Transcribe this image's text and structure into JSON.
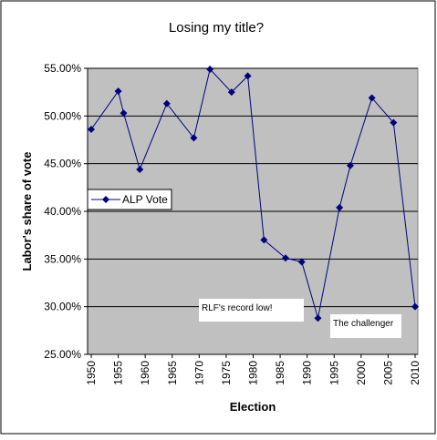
{
  "chart_data": {
    "type": "line",
    "title": "Losing my title?",
    "x_label": "Election",
    "y_label": "Labor's share of vote",
    "x": [
      1950,
      1955,
      1956,
      1959,
      1964,
      1969,
      1972,
      1976,
      1979,
      1982,
      1986,
      1989,
      1992,
      1996,
      1998,
      2002,
      2006,
      2010
    ],
    "series": [
      {
        "name": "ALP Vote",
        "color": "#000080",
        "values": [
          48.6,
          52.6,
          50.3,
          44.4,
          51.3,
          47.7,
          54.9,
          52.5,
          54.2,
          37.0,
          35.1,
          34.7,
          28.8,
          40.4,
          44.8,
          51.9,
          49.3,
          30.0
        ]
      }
    ],
    "xlim": [
      1950,
      2010
    ],
    "xticks": [
      1950,
      1955,
      1960,
      1965,
      1970,
      1975,
      1980,
      1985,
      1990,
      1995,
      2000,
      2005,
      2010
    ],
    "ylim": [
      25,
      55
    ],
    "yticks": [
      {
        "value": 25,
        "label": "25.00%"
      },
      {
        "value": 30,
        "label": "30.00%"
      },
      {
        "value": 35,
        "label": "35.00%"
      },
      {
        "value": 40,
        "label": "40.00%"
      },
      {
        "value": 45,
        "label": "45.00%"
      },
      {
        "value": 50,
        "label": "50.00%"
      },
      {
        "value": 55,
        "label": "55.00%"
      }
    ],
    "grid": true,
    "legend": "left",
    "annotations": [
      "RLF's record low!",
      "The challenger"
    ]
  }
}
